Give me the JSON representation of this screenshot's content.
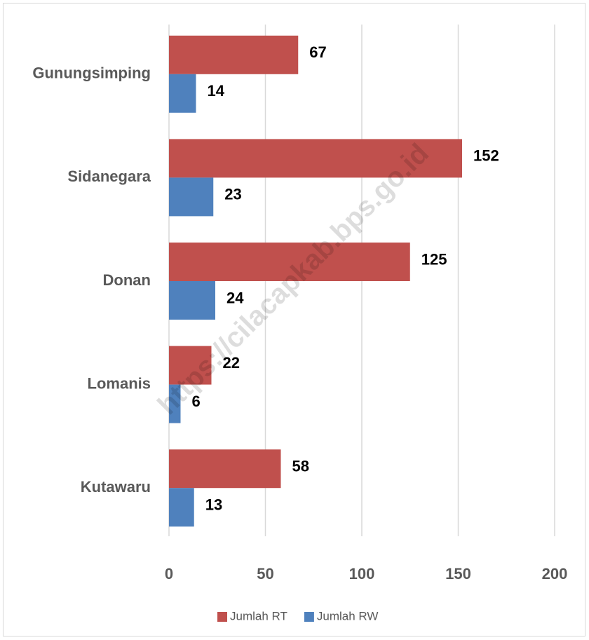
{
  "chart_data": {
    "type": "hbar",
    "categories": [
      "Gunungsimping",
      "Sidanegara",
      "Donan",
      "Lomanis",
      "Kutawaru"
    ],
    "series": [
      {
        "name": "Jumlah RT",
        "color": "#c0504d",
        "values": [
          67,
          152,
          125,
          22,
          58
        ]
      },
      {
        "name": "Jumlah RW",
        "color": "#4f81bd",
        "values": [
          14,
          23,
          24,
          6,
          13
        ]
      }
    ],
    "xlim": [
      0,
      200
    ],
    "xticks": [
      0,
      50,
      100,
      150,
      200
    ],
    "grid": true,
    "legend": "bottom",
    "watermark": "https://cilacapkab.bps.go.id"
  }
}
